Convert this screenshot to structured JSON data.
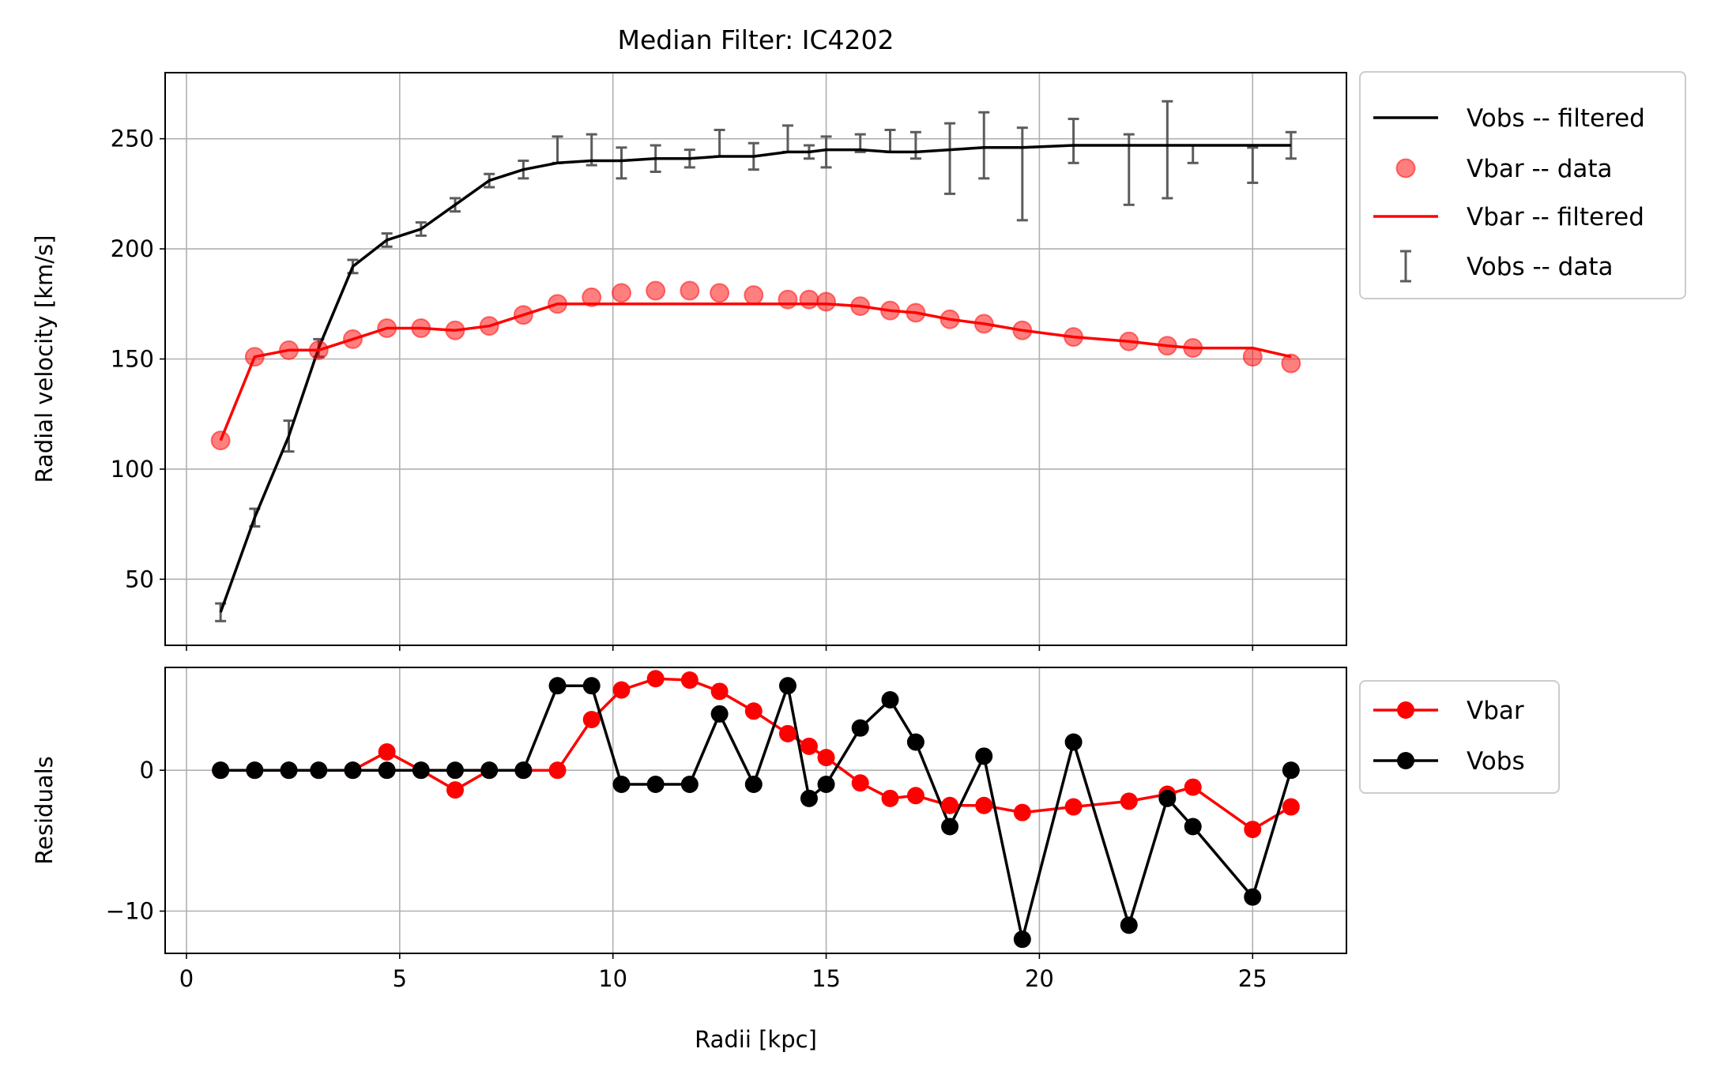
{
  "chart_data": [
    {
      "type": "line",
      "title": "Median Filter: IC4202",
      "xlabel": "",
      "ylabel": "Radial velocity [km/s]",
      "xlim": [
        -0.5,
        27.2
      ],
      "ylim": [
        20,
        280
      ],
      "xticks": [
        0,
        5,
        10,
        15,
        20,
        25
      ],
      "yticks": [
        50,
        100,
        150,
        200,
        250
      ],
      "grid": true,
      "legend_position": "outside-right",
      "x": [
        0.8,
        1.6,
        2.4,
        3.1,
        3.9,
        4.7,
        5.5,
        6.3,
        7.1,
        7.9,
        8.7,
        9.5,
        10.2,
        11.0,
        11.8,
        12.5,
        13.3,
        14.1,
        14.6,
        15.0,
        15.8,
        16.5,
        17.1,
        17.9,
        18.7,
        19.6,
        20.8,
        22.1,
        23.0,
        23.6,
        25.0,
        25.9
      ],
      "series": [
        {
          "name": "Vobs -- filtered",
          "kind": "line",
          "color": "#000000",
          "values": [
            35,
            78,
            115,
            155,
            192,
            204,
            209,
            220,
            231,
            236,
            239,
            240,
            240,
            241,
            241,
            242,
            242,
            244,
            244,
            245,
            245,
            244,
            244,
            245,
            246,
            246,
            247,
            247,
            247,
            247,
            247,
            247
          ]
        },
        {
          "name": "Vbar -- data",
          "kind": "scatter",
          "color": "#ff0000",
          "values": [
            113,
            151,
            154,
            154,
            159,
            164,
            164,
            163,
            165,
            170,
            175,
            178,
            180,
            181,
            181,
            180,
            179,
            177,
            177,
            176,
            174,
            172,
            171,
            168,
            166,
            163,
            160,
            158,
            156,
            155,
            151,
            148
          ]
        },
        {
          "name": "Vbar -- filtered",
          "kind": "line",
          "color": "#ff0000",
          "values": [
            113,
            151,
            154,
            154,
            159,
            164,
            164,
            163,
            165,
            170,
            175,
            175,
            175,
            175,
            175,
            175,
            175,
            175,
            175,
            175,
            174,
            172,
            171,
            168,
            166,
            163,
            160,
            158,
            156,
            155,
            155,
            151
          ]
        },
        {
          "name": "Vobs -- data",
          "kind": "errorbar",
          "color": "#5c5c5c",
          "values": [
            35,
            78,
            115,
            155,
            192,
            204,
            209,
            220,
            231,
            236,
            245,
            245,
            239,
            241,
            241,
            248,
            242,
            250,
            244,
            244,
            248,
            249,
            247,
            241,
            247,
            234,
            249,
            236,
            245,
            243,
            238,
            247
          ],
          "errors": [
            4,
            4,
            7,
            4,
            3,
            3,
            3,
            3,
            3,
            4,
            6,
            7,
            7,
            6,
            4,
            6,
            6,
            6,
            3,
            7,
            4,
            5,
            6,
            16,
            15,
            21,
            10,
            16,
            22,
            4,
            8,
            6
          ]
        }
      ]
    },
    {
      "type": "line",
      "title": "",
      "xlabel": "Radii [kpc]",
      "ylabel": "Residuals",
      "xlim": [
        -0.5,
        27.2
      ],
      "ylim": [
        -13,
        7.3
      ],
      "xticks": [
        0,
        5,
        10,
        15,
        20,
        25
      ],
      "xticklabels": [
        "0",
        "5",
        "10",
        "15",
        "20",
        "25"
      ],
      "yticks": [
        -10,
        0
      ],
      "yticklabels": [
        "−10",
        "0"
      ],
      "grid": true,
      "legend_position": "outside-right",
      "x": [
        0.8,
        1.6,
        2.4,
        3.1,
        3.9,
        4.7,
        5.5,
        6.3,
        7.1,
        7.9,
        8.7,
        9.5,
        10.2,
        11.0,
        11.8,
        12.5,
        13.3,
        14.1,
        14.6,
        15.0,
        15.8,
        16.5,
        17.1,
        17.9,
        18.7,
        19.6,
        20.8,
        22.1,
        23.0,
        23.6,
        25.0,
        25.9
      ],
      "series": [
        {
          "name": "Vbar",
          "kind": "line-marker",
          "color": "#ff0000",
          "values": [
            0,
            0,
            0,
            0,
            0,
            1.3,
            0,
            -1.4,
            0,
            0,
            0,
            3.6,
            5.7,
            6.5,
            6.4,
            5.6,
            4.2,
            2.6,
            1.7,
            0.9,
            -0.9,
            -2.0,
            -1.8,
            -2.5,
            -2.5,
            -3.0,
            -2.6,
            -2.2,
            -1.7,
            -1.2,
            -4.2,
            -2.6
          ]
        },
        {
          "name": "Vobs",
          "kind": "line-marker",
          "color": "#000000",
          "values": [
            0,
            0,
            0,
            0,
            0,
            0,
            0,
            0,
            0,
            0,
            6,
            6,
            -1,
            -1,
            -1,
            4,
            -1,
            6,
            -2,
            -1,
            3,
            5,
            2,
            -4,
            1,
            -12,
            2,
            -11,
            -2,
            -4,
            -9,
            0
          ]
        }
      ]
    }
  ]
}
